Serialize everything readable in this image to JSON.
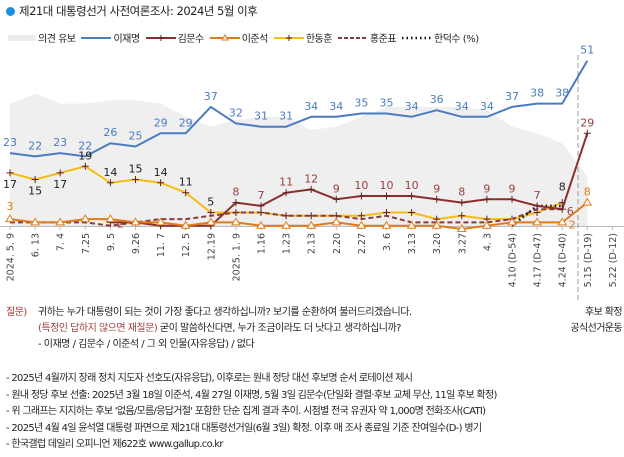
{
  "title": "제21대 대통령선거 사전여론조사: 2024년 5월 이후",
  "legend": [
    {
      "label": "의견 유보",
      "color": "#ececec",
      "style": "area"
    },
    {
      "label": "이재명",
      "color": "#4a7cc0",
      "style": "line"
    },
    {
      "label": "김문수",
      "color": "#8c2f2f",
      "style": "plus"
    },
    {
      "label": "이준석",
      "color": "#e07b1a",
      "style": "triangle"
    },
    {
      "label": "한동훈",
      "color": "#f4bd14",
      "style": "plus"
    },
    {
      "label": "홍준표",
      "color": "#8c3a3a",
      "style": "dashed"
    },
    {
      "label": "한덕수 (%)",
      "color": "#111111",
      "style": "dotted"
    }
  ],
  "chart_data": {
    "type": "line",
    "title": "제21대 대통령선거 사전여론조사: 2024년 5월 이후",
    "ylabel": "%",
    "ylim": [
      0,
      55
    ],
    "categories": [
      "2024. 5. 9",
      "6. 13",
      "7. 4",
      "7.25",
      "9. 5",
      "9.26",
      "11. 7",
      "12. 5",
      "12.19",
      "2025. 1. 9",
      "1.16",
      "1.23",
      "2.13",
      "2.20",
      "2.27",
      "3. 6",
      "3.13",
      "3.20",
      "3.27",
      "4. 3",
      "4.10 (D-54)",
      "4.17 (D-47)",
      "4.24 (D-40)",
      "5.15 (D-19)",
      "5.22 (D-12)"
    ],
    "area": {
      "name": "의견 유보",
      "values": [
        38,
        41,
        38,
        38,
        39,
        39,
        38,
        34,
        31,
        33,
        34,
        34,
        30,
        31,
        34,
        37,
        37,
        37,
        37,
        36,
        31,
        29,
        26,
        16,
        null
      ]
    },
    "series": [
      {
        "name": "이재명",
        "color": "#4a7cc0",
        "style": "solid",
        "marker": "none",
        "label_color": "#4a7cc0",
        "label_pos": "above",
        "values": [
          23,
          22,
          23,
          22,
          26,
          25,
          29,
          29,
          37,
          32,
          31,
          31,
          34,
          34,
          35,
          35,
          34,
          36,
          34,
          34,
          37,
          38,
          38,
          51,
          null
        ],
        "labels": [
          1,
          1,
          1,
          1,
          1,
          1,
          1,
          1,
          1,
          1,
          1,
          1,
          1,
          1,
          1,
          1,
          1,
          1,
          1,
          1,
          1,
          1,
          1,
          1,
          0
        ]
      },
      {
        "name": "한동훈",
        "color": "#f4bd14",
        "style": "solid",
        "marker": "plus",
        "label_color": "#222222",
        "label_pos": "mixed",
        "values": [
          17,
          15,
          17,
          19,
          14,
          15,
          14,
          11,
          5,
          5,
          5,
          4,
          4,
          4,
          4,
          5,
          5,
          3,
          4,
          3,
          3,
          5,
          8,
          null,
          null
        ],
        "labels": [
          1,
          1,
          1,
          1,
          1,
          1,
          1,
          1,
          1,
          0,
          0,
          0,
          0,
          0,
          0,
          0,
          0,
          0,
          0,
          0,
          0,
          0,
          1,
          0,
          0
        ]
      },
      {
        "name": "홍준표",
        "color": "#8c3a3a",
        "style": "dashed",
        "marker": "none",
        "values": [
          2,
          2,
          2,
          2,
          1,
          2,
          3,
          3,
          4,
          5,
          5,
          4,
          4,
          4,
          3,
          4,
          2,
          2,
          2,
          2,
          3,
          6,
          6,
          null,
          null
        ],
        "labels": [
          0,
          0,
          0,
          0,
          0,
          0,
          0,
          0,
          0,
          0,
          0,
          0,
          0,
          0,
          0,
          0,
          0,
          0,
          0,
          0,
          0,
          0,
          0,
          0,
          0
        ]
      },
      {
        "name": "한덕수",
        "color": "#111111",
        "style": "dotted",
        "marker": "none",
        "values": [
          null,
          null,
          null,
          null,
          null,
          null,
          null,
          null,
          null,
          null,
          null,
          null,
          null,
          null,
          null,
          null,
          null,
          null,
          null,
          null,
          1,
          7,
          7,
          null,
          null
        ],
        "labels": [
          0,
          0,
          0,
          0,
          0,
          0,
          0,
          0,
          0,
          0,
          0,
          0,
          0,
          0,
          0,
          0,
          0,
          0,
          0,
          0,
          0,
          0,
          0,
          0,
          0
        ]
      },
      {
        "name": "김문수",
        "color": "#8c2f2f",
        "style": "solid",
        "marker": "plus",
        "label_color": "#9a4040",
        "label_pos": "above",
        "values": [
          null,
          null,
          null,
          null,
          2,
          2,
          1,
          1,
          1,
          8,
          7,
          11,
          12,
          9,
          10,
          10,
          10,
          9,
          8,
          9,
          9,
          7,
          6,
          29,
          null
        ],
        "labels": [
          0,
          0,
          0,
          0,
          1,
          0,
          0,
          0,
          0,
          1,
          1,
          1,
          1,
          1,
          1,
          1,
          1,
          1,
          1,
          1,
          1,
          1,
          1,
          1,
          0
        ]
      },
      {
        "name": "이준석",
        "color": "#e07b1a",
        "style": "solid",
        "marker": "triangle",
        "label_color": "#e07b1a",
        "label_pos": "above",
        "values": [
          3,
          2,
          2,
          3,
          3,
          2,
          2,
          1,
          2,
          2,
          1,
          1,
          1,
          2,
          1,
          1,
          1,
          1,
          0,
          1,
          2,
          2,
          2,
          8,
          null
        ],
        "labels": [
          1,
          0,
          0,
          0,
          0,
          0,
          0,
          0,
          0,
          0,
          0,
          0,
          0,
          0,
          0,
          0,
          0,
          0,
          0,
          0,
          0,
          0,
          1,
          1,
          0
        ]
      }
    ],
    "annotation_divider_after": "4.24 (D-40)"
  },
  "question": {
    "label": "질문)",
    "line1": "귀하는 누가 대통령이 되는 것이 가장 좋다고 생각하십니까? 보기를 순환하여 불러드리겠습니다.",
    "line2_red": "(특정인 답하지 않으면 재질문)",
    "line2_rest": " 굳이 말씀하신다면, 누가 조금이라도 더 낫다고 생각하십니까?",
    "line3": "- 이재명 / 김문수 / 이준석 / 그 외 인물(자유응답) / 없다"
  },
  "right_note": {
    "line1": "후보 확정",
    "line2": "공식선거운동"
  },
  "notes": [
    "- 2025년 4월까지 장래 정치 지도자 선호도(자유응답), 이후로는 원내 정당 대선 후보명 순서 로테이션 제시",
    "- 원내 정당 후보 선출: 2025년 3월 18일 이준석, 4월 27일 이재명, 5월 3일 김문수(단일화 결렬·후보 교체 무산, 11일 후보 확정)",
    "- 위 그래프는 지지하는 후보 '없음/모름/응답거절' 포함한 단순 집계 결과 추이. 시점별 전국 유권자 약 1,000명 전화조사(CATI)",
    "- 2025년 4월 4일 윤석열 대통령 파면으로 제21대 대통령선거일(6월 3일) 확정. 이후 매 조사 종료일 기준 잔여일수(D-) 병기",
    "- 한국갤럽 데일리 오피니언 제622호 www.gallup.co.kr"
  ]
}
